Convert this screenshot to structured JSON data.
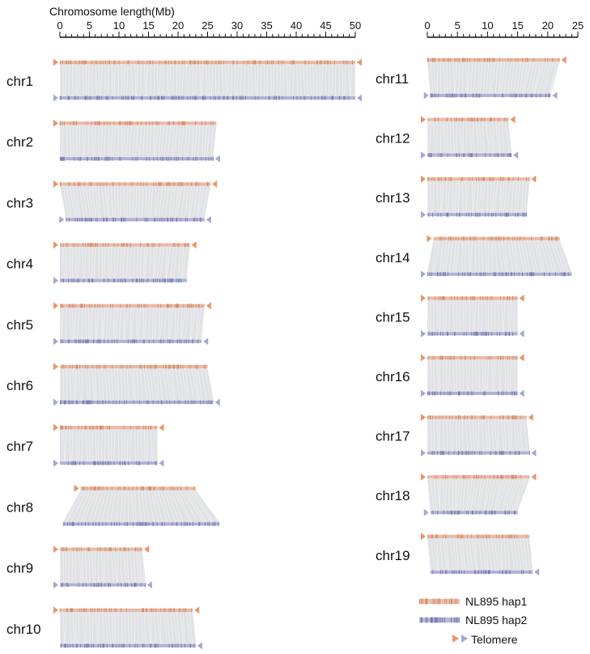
{
  "chart_data": {
    "type": "synteny",
    "axis_title": "Chromosome length(Mb)",
    "panels": [
      {
        "name": "left",
        "xlim": [
          0,
          50
        ],
        "ticks": [
          "0",
          "5",
          "10",
          "15",
          "20",
          "25",
          "30",
          "35",
          "40",
          "45",
          "50"
        ]
      },
      {
        "name": "right",
        "xlim": [
          0,
          25
        ],
        "ticks": [
          "0",
          "5",
          "10",
          "15",
          "20",
          "25"
        ]
      }
    ],
    "chromosomes": [
      {
        "label": "chr1",
        "panel": 0,
        "hap1": [
          0,
          50.0
        ],
        "hap2": [
          0,
          50.0
        ],
        "tel_hap1": [
          "left",
          "right"
        ],
        "tel_hap2": [
          "left",
          "right"
        ]
      },
      {
        "label": "chr2",
        "panel": 0,
        "hap1": [
          0,
          26.5
        ],
        "hap2": [
          0,
          26.0
        ],
        "tel_hap1": [
          "left"
        ],
        "tel_hap2": [
          "right"
        ]
      },
      {
        "label": "chr3",
        "panel": 0,
        "hap1": [
          0,
          25.5
        ],
        "hap2": [
          1.0,
          24.5
        ],
        "tel_hap1": [
          "left",
          "right"
        ],
        "tel_hap2": [
          "left",
          "right"
        ]
      },
      {
        "label": "chr4",
        "panel": 0,
        "hap1": [
          0,
          22.0
        ],
        "hap2": [
          0,
          21.5
        ],
        "tel_hap1": [
          "left",
          "right"
        ],
        "tel_hap2": [
          "left"
        ]
      },
      {
        "label": "chr5",
        "panel": 0,
        "hap1": [
          0,
          24.5
        ],
        "hap2": [
          0,
          24.0
        ],
        "tel_hap1": [
          "left",
          "right"
        ],
        "tel_hap2": [
          "left",
          "right"
        ]
      },
      {
        "label": "chr6",
        "panel": 0,
        "hap1": [
          0,
          25.0
        ],
        "hap2": [
          0,
          26.0
        ],
        "tel_hap1": [
          "left"
        ],
        "tel_hap2": [
          "left",
          "right"
        ]
      },
      {
        "label": "chr7",
        "panel": 0,
        "hap1": [
          0,
          16.5
        ],
        "hap2": [
          0,
          16.5
        ],
        "tel_hap1": [
          "left",
          "right"
        ],
        "tel_hap2": [
          "left",
          "right"
        ]
      },
      {
        "label": "chr8",
        "panel": 0,
        "hap1": [
          3.5,
          23.0
        ],
        "hap2": [
          0.5,
          27.0
        ],
        "tel_hap1": [
          "left"
        ],
        "tel_hap2": []
      },
      {
        "label": "chr9",
        "panel": 0,
        "hap1": [
          0,
          14.0
        ],
        "hap2": [
          0,
          14.5
        ],
        "tel_hap1": [
          "left",
          "right"
        ],
        "tel_hap2": [
          "left",
          "right"
        ]
      },
      {
        "label": "chr10",
        "panel": 0,
        "hap1": [
          0,
          22.5
        ],
        "hap2": [
          0,
          23.0
        ],
        "tel_hap1": [
          "left",
          "right"
        ],
        "tel_hap2": [
          "right"
        ]
      },
      {
        "label": "chr11",
        "panel": 1,
        "hap1": [
          0,
          22.0
        ],
        "hap2": [
          0.5,
          20.5
        ],
        "tel_hap1": [
          "right"
        ],
        "tel_hap2": [
          "left",
          "right"
        ]
      },
      {
        "label": "chr12",
        "panel": 1,
        "hap1": [
          0,
          13.5
        ],
        "hap2": [
          0,
          14.0
        ],
        "tel_hap1": [
          "left",
          "right"
        ],
        "tel_hap2": [
          "left",
          "right"
        ]
      },
      {
        "label": "chr13",
        "panel": 1,
        "hap1": [
          0,
          17.0
        ],
        "hap2": [
          0,
          16.5
        ],
        "tel_hap1": [
          "left",
          "right"
        ],
        "tel_hap2": [
          "left"
        ]
      },
      {
        "label": "chr14",
        "panel": 1,
        "hap1": [
          1.0,
          22.0
        ],
        "hap2": [
          0,
          24.0
        ],
        "tel_hap1": [
          "left"
        ],
        "tel_hap2": [
          "left"
        ]
      },
      {
        "label": "chr15",
        "panel": 1,
        "hap1": [
          0,
          15.0
        ],
        "hap2": [
          0,
          15.0
        ],
        "tel_hap1": [
          "left",
          "right"
        ],
        "tel_hap2": [
          "left",
          "right"
        ]
      },
      {
        "label": "chr16",
        "panel": 1,
        "hap1": [
          0,
          15.0
        ],
        "hap2": [
          0,
          15.0
        ],
        "tel_hap1": [
          "left",
          "right"
        ],
        "tel_hap2": [
          "left",
          "right"
        ]
      },
      {
        "label": "chr17",
        "panel": 1,
        "hap1": [
          0,
          16.5
        ],
        "hap2": [
          0,
          17.0
        ],
        "tel_hap1": [
          "left",
          "right"
        ],
        "tel_hap2": [
          "left",
          "right"
        ]
      },
      {
        "label": "chr18",
        "panel": 1,
        "hap1": [
          0,
          17.0
        ],
        "hap2": [
          0.5,
          15.0
        ],
        "tel_hap1": [
          "left",
          "right"
        ],
        "tel_hap2": [
          "left"
        ]
      },
      {
        "label": "chr19",
        "panel": 1,
        "hap1": [
          0,
          17.0
        ],
        "hap2": [
          0.5,
          17.5
        ],
        "tel_hap1": [
          "left"
        ],
        "tel_hap2": [
          "right"
        ]
      }
    ],
    "legend": {
      "placement": "bottom-right",
      "hap1": "NL895 hap1",
      "hap2": "NL895 hap2",
      "telomere": "Telomere"
    },
    "colors": {
      "hap1": "#d6845f",
      "hap2": "#6f74ae",
      "telomere_hap1": "#e8956a",
      "telomere_hap2": "#a3a8cf",
      "synteny": "#dcdde0"
    }
  }
}
